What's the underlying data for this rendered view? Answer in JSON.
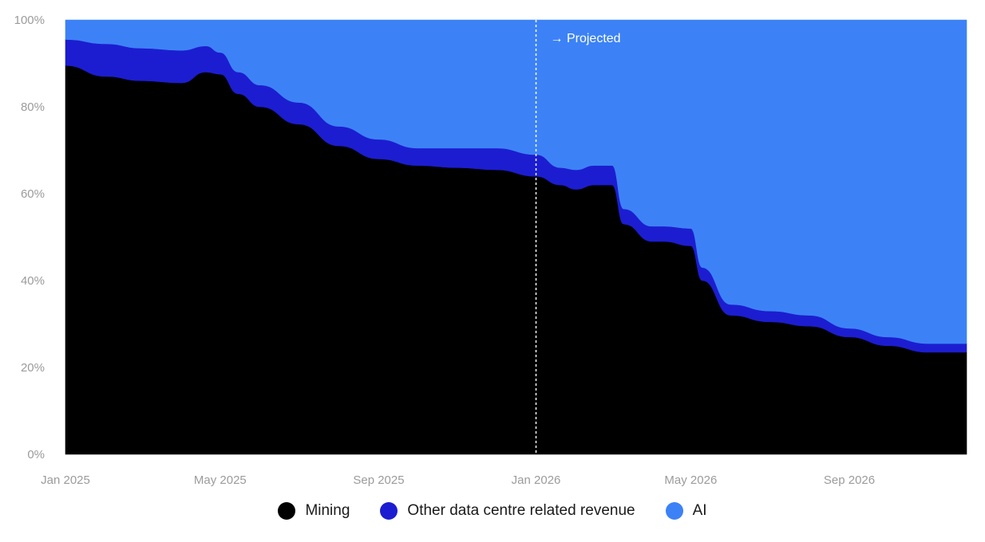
{
  "chart_data": {
    "type": "area",
    "stacked": true,
    "normalized": true,
    "x_dates": [
      "2025-01",
      "2025-02",
      "2025-03",
      "2025-04",
      "2025-04-20",
      "2025-05",
      "2025-05-15",
      "2025-06",
      "2025-07",
      "2025-08",
      "2025-09",
      "2025-10",
      "2025-11",
      "2025-12",
      "2026-01",
      "2026-01-20",
      "2026-02",
      "2026-02-15",
      "2026-03",
      "2026-03-10",
      "2026-04",
      "2026-04-10",
      "2026-05",
      "2026-05-10",
      "2026-06",
      "2026-07",
      "2026-08",
      "2026-09",
      "2026-10",
      "2026-11",
      "2026-12"
    ],
    "series": [
      {
        "name": "Mining",
        "color": "#000000",
        "values": [
          89.5,
          87,
          86,
          85.5,
          88,
          87.5,
          83,
          80,
          76,
          71,
          68,
          66.5,
          66,
          65.5,
          64,
          62,
          61,
          62,
          62,
          53,
          49,
          49,
          48,
          40,
          32,
          30.5,
          29.5,
          27,
          25,
          23.5,
          23.5
        ]
      },
      {
        "name": "Other data centre related revenue",
        "color": "#1c1dd0",
        "values": [
          6,
          7.5,
          7.5,
          7.5,
          6,
          5,
          5,
          5,
          5,
          4.5,
          4.5,
          4,
          4.5,
          5,
          5,
          4,
          4.5,
          4.5,
          4.5,
          3.5,
          3.5,
          3.5,
          4,
          3,
          2.5,
          2.5,
          2.5,
          2,
          2,
          2,
          2
        ]
      },
      {
        "name": "AI",
        "color": "#3c82f6",
        "values": [
          4.5,
          5.5,
          6.5,
          7,
          6,
          7.5,
          12,
          15,
          19,
          24.5,
          27.5,
          29.5,
          29.5,
          29.5,
          31,
          34,
          34.5,
          33.5,
          33.5,
          43.5,
          47.5,
          47.5,
          48,
          57,
          65.5,
          67,
          68,
          71,
          73,
          74.5,
          74.5
        ]
      }
    ],
    "x_ticks": [
      "Jan 2025",
      "May 2025",
      "Sep 2025",
      "Jan 2026",
      "May 2026",
      "Sep 2026"
    ],
    "x_tick_dates": [
      "2025-01",
      "2025-05",
      "2025-09",
      "2026-01",
      "2026-05",
      "2026-09"
    ],
    "y_ticks": [
      "0%",
      "20%",
      "40%",
      "60%",
      "80%",
      "100%"
    ],
    "y_tick_values": [
      0,
      20,
      40,
      60,
      80,
      100
    ],
    "ylim": [
      0,
      100
    ],
    "projection_start": "2026-01",
    "annotation": "→ Projected",
    "legend_position": "bottom-center",
    "title": "",
    "xlabel": "",
    "ylabel": ""
  },
  "legend": [
    {
      "label": "Mining",
      "color": "#000000"
    },
    {
      "label": "Other data centre related revenue",
      "color": "#1c1dd0"
    },
    {
      "label": "AI",
      "color": "#3c82f6"
    }
  ]
}
